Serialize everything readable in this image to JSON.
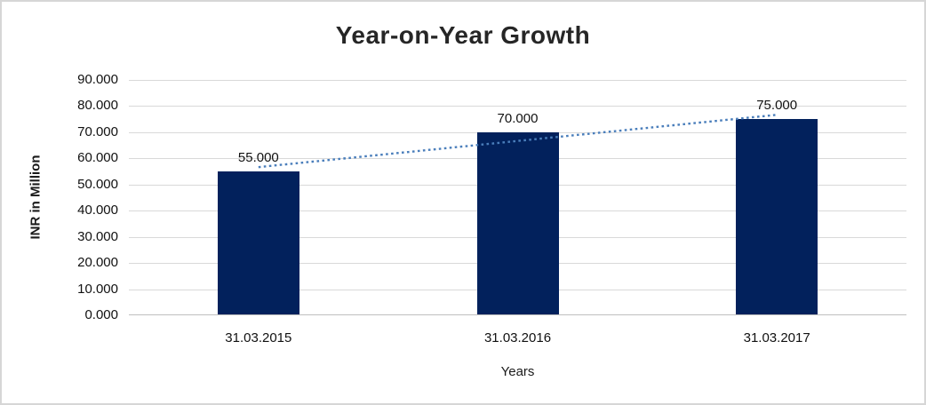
{
  "chart_data": {
    "type": "bar",
    "title": "Year-on-Year Growth",
    "categories": [
      "31.03.2015",
      "31.03.2016",
      "31.03.2017"
    ],
    "values": [
      55000,
      70000,
      75000
    ],
    "value_labels": [
      "55.000",
      "70.000",
      "75.000"
    ],
    "xlabel": "Years",
    "ylabel": "INR in Million",
    "ylim": [
      0,
      90000
    ],
    "ytick_step": 10000,
    "ytick_labels": [
      "0.000",
      "10.000",
      "20.000",
      "30.000",
      "40.000",
      "50.000",
      "60.000",
      "70.000",
      "80.000",
      "90.000"
    ],
    "grid": true,
    "legend": "none",
    "trendline": {
      "type": "linear",
      "style": "dotted"
    }
  },
  "colors": {
    "bar_fill": "#02215c",
    "trendline": "#4a7ebb",
    "gridline": "#d9d9d9",
    "axis_line": "#bfbfbf",
    "border": "#d6d6d6",
    "background": "#ffffff"
  }
}
